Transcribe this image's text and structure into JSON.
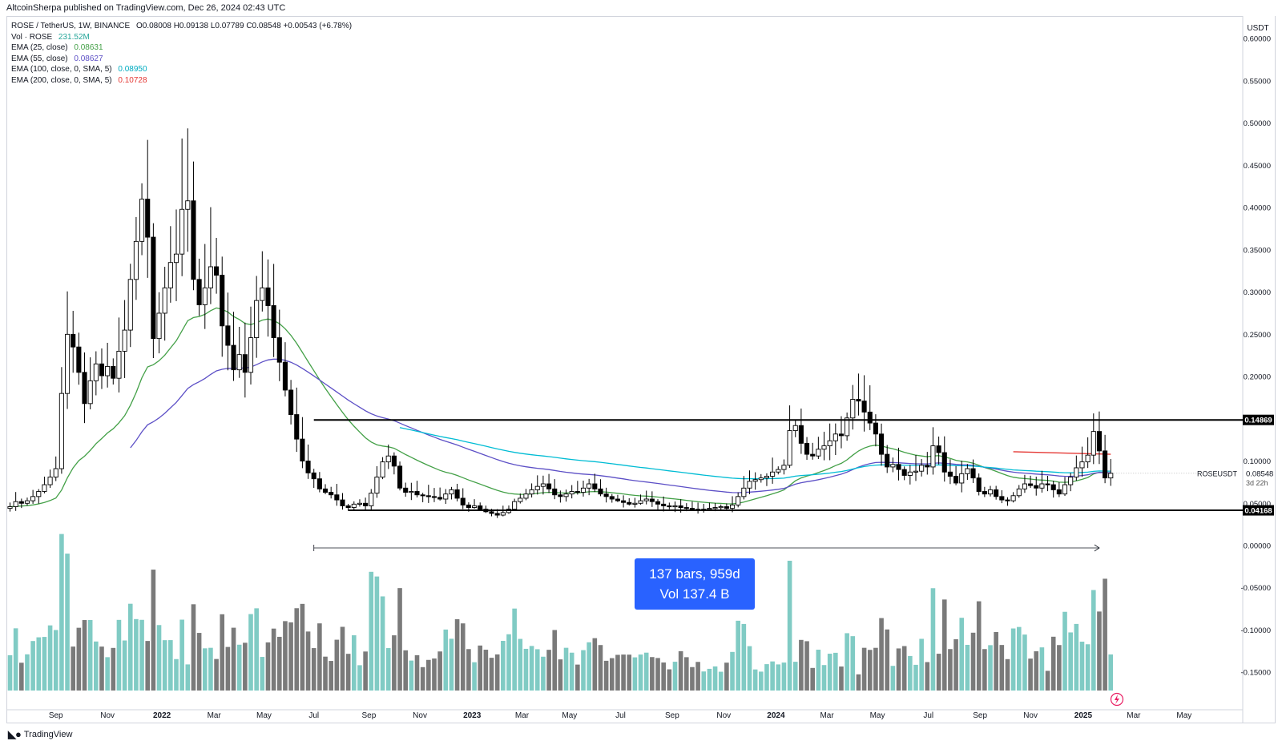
{
  "header": {
    "published_by": "AltcoinSherpa published on TradingView.com, Dec 26, 2024 02:43 UTC"
  },
  "legend": {
    "symbol_line": "ROSE / TetherUS, 1W, BINANCE",
    "ohlc": "O0.08008 H0.09138 L0.07789 C0.08548 +0.00543 (+6.78%)",
    "rows": [
      {
        "label": "Vol · ROSE",
        "value": "231.52M",
        "color": "#26a69a"
      },
      {
        "label": "EMA (25, close)",
        "value": "0.08631",
        "color": "#43a047"
      },
      {
        "label": "EMA (55, close)",
        "value": "0.08627",
        "color": "#5c4fc6"
      },
      {
        "label": "EMA (100, close, 0, SMA, 5)",
        "value": "0.08950",
        "color": "#00bcd4"
      },
      {
        "label": "EMA (200, close, 0, SMA, 5)",
        "value": "0.10728",
        "color": "#e53935"
      }
    ]
  },
  "footer": {
    "brand": "TradingView"
  },
  "measure": {
    "line1": "137 bars, 959d",
    "line2": "Vol 137.4 B"
  },
  "chart_data": {
    "type": "candlestick",
    "symbol": "ROSEUSDT",
    "timeframe": "1W",
    "currency": "USDT",
    "price_axis": {
      "ticks": [
        0.6,
        0.55,
        0.5,
        0.45,
        0.4,
        0.35,
        0.3,
        0.25,
        0.2,
        0.1,
        0.05,
        0.0,
        -0.05,
        -0.1,
        -0.15
      ],
      "tick_labels": [
        "0.60000",
        "0.55000",
        "0.50000",
        "0.45000",
        "0.40000",
        "0.35000",
        "0.30000",
        "0.25000",
        "0.20000",
        "0.10000",
        "0.05000",
        "0.00000",
        "-0.05000",
        "-0.10000",
        "-0.15000"
      ],
      "ylim": [
        -0.19,
        0.61
      ]
    },
    "time_axis": {
      "labels": [
        "Sep",
        "Nov",
        "2022",
        "Mar",
        "May",
        "Jul",
        "Sep",
        "Nov",
        "2023",
        "Mar",
        "May",
        "Jul",
        "Sep",
        "Nov",
        "2024",
        "Mar",
        "May",
        "Jul",
        "Sep",
        "Nov",
        "2025",
        "Mar",
        "May"
      ],
      "bold": [
        "2022",
        "2023",
        "2024",
        "2025"
      ]
    },
    "price_labels": [
      {
        "value": 0.14869,
        "text": "0.14869",
        "style": "dark"
      },
      {
        "value": 0.04168,
        "text": "0.04168",
        "style": "dark"
      },
      {
        "value": 0.08548,
        "text": "0.08548",
        "style": "plain",
        "caption": "3d 22h",
        "tag": "ROSEUSDT"
      }
    ],
    "levels": [
      {
        "value": 0.14869,
        "from_index": 53,
        "color": "#000000"
      },
      {
        "value": 0.04168,
        "from_index": 59,
        "color": "#000000"
      }
    ],
    "ema200_segment": {
      "from_index": 175,
      "to_index": 192,
      "from_value": 0.111,
      "to_value": 0.108
    },
    "measure_range": {
      "from_index": 53,
      "to_index": 190
    },
    "closes": [
      0.046,
      0.052,
      0.05,
      0.053,
      0.058,
      0.064,
      0.072,
      0.081,
      0.091,
      0.18,
      0.25,
      0.235,
      0.205,
      0.168,
      0.195,
      0.215,
      0.201,
      0.212,
      0.198,
      0.23,
      0.255,
      0.315,
      0.36,
      0.41,
      0.365,
      0.245,
      0.275,
      0.305,
      0.335,
      0.345,
      0.398,
      0.408,
      0.315,
      0.285,
      0.305,
      0.33,
      0.32,
      0.26,
      0.237,
      0.208,
      0.226,
      0.205,
      0.246,
      0.29,
      0.305,
      0.284,
      0.246,
      0.217,
      0.184,
      0.155,
      0.126,
      0.1,
      0.086,
      0.079,
      0.067,
      0.063,
      0.06,
      0.054,
      0.047,
      0.045,
      0.049,
      0.05,
      0.047,
      0.062,
      0.081,
      0.099,
      0.106,
      0.094,
      0.068,
      0.063,
      0.064,
      0.06,
      0.059,
      0.058,
      0.057,
      0.055,
      0.061,
      0.066,
      0.056,
      0.048,
      0.045,
      0.047,
      0.043,
      0.04,
      0.038,
      0.036,
      0.039,
      0.043,
      0.052,
      0.056,
      0.061,
      0.066,
      0.07,
      0.073,
      0.067,
      0.06,
      0.058,
      0.061,
      0.064,
      0.063,
      0.068,
      0.073,
      0.067,
      0.061,
      0.058,
      0.055,
      0.053,
      0.051,
      0.049,
      0.05,
      0.053,
      0.055,
      0.052,
      0.049,
      0.047,
      0.046,
      0.047,
      0.045,
      0.044,
      0.043,
      0.042,
      0.043,
      0.044,
      0.045,
      0.046,
      0.044,
      0.048,
      0.058,
      0.068,
      0.076,
      0.078,
      0.08,
      0.082,
      0.087,
      0.09,
      0.095,
      0.136,
      0.142,
      0.121,
      0.108,
      0.106,
      0.114,
      0.118,
      0.124,
      0.132,
      0.13,
      0.151,
      0.173,
      0.171,
      0.158,
      0.145,
      0.132,
      0.108,
      0.093,
      0.096,
      0.09,
      0.083,
      0.087,
      0.088,
      0.095,
      0.093,
      0.118,
      0.11,
      0.087,
      0.082,
      0.074,
      0.085,
      0.091,
      0.08,
      0.064,
      0.061,
      0.066,
      0.058,
      0.054,
      0.053,
      0.059,
      0.067,
      0.073,
      0.071,
      0.068,
      0.073,
      0.072,
      0.066,
      0.061,
      0.072,
      0.081,
      0.092,
      0.099,
      0.107,
      0.135,
      0.112,
      0.08,
      0.0855
    ],
    "volume_bars": 192,
    "volume_note": "teal = up week, gray = down week; heights in relative units",
    "series": [
      {
        "name": "EMA (25, close)",
        "color": "#43a047"
      },
      {
        "name": "EMA (55, close)",
        "color": "#5c4fc6"
      },
      {
        "name": "EMA (100, close, 0, SMA, 5)",
        "color": "#00bcd4"
      },
      {
        "name": "EMA (200, close, 0, SMA, 5)",
        "color": "#e53935"
      }
    ],
    "colors": {
      "up_body": "#ffffff",
      "down_body": "#000000",
      "vol_up": "#80cbc4",
      "vol_down": "#7a7a7a",
      "measure": "#2962ff"
    }
  }
}
